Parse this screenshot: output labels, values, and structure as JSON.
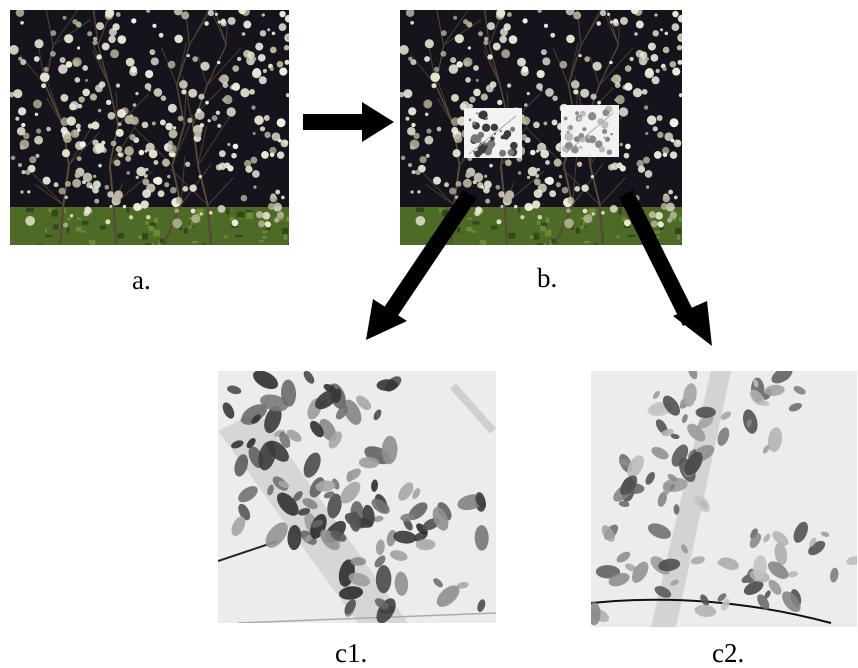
{
  "labels": {
    "a": "a.",
    "b": "b.",
    "c1": "c1.",
    "c2": "c2."
  },
  "colors": {
    "night_background": "#15131c",
    "blossom": "#e9e6d2",
    "grass": "#4d6a26",
    "inverted_background": "#ececec",
    "arrow": "#000000"
  }
}
